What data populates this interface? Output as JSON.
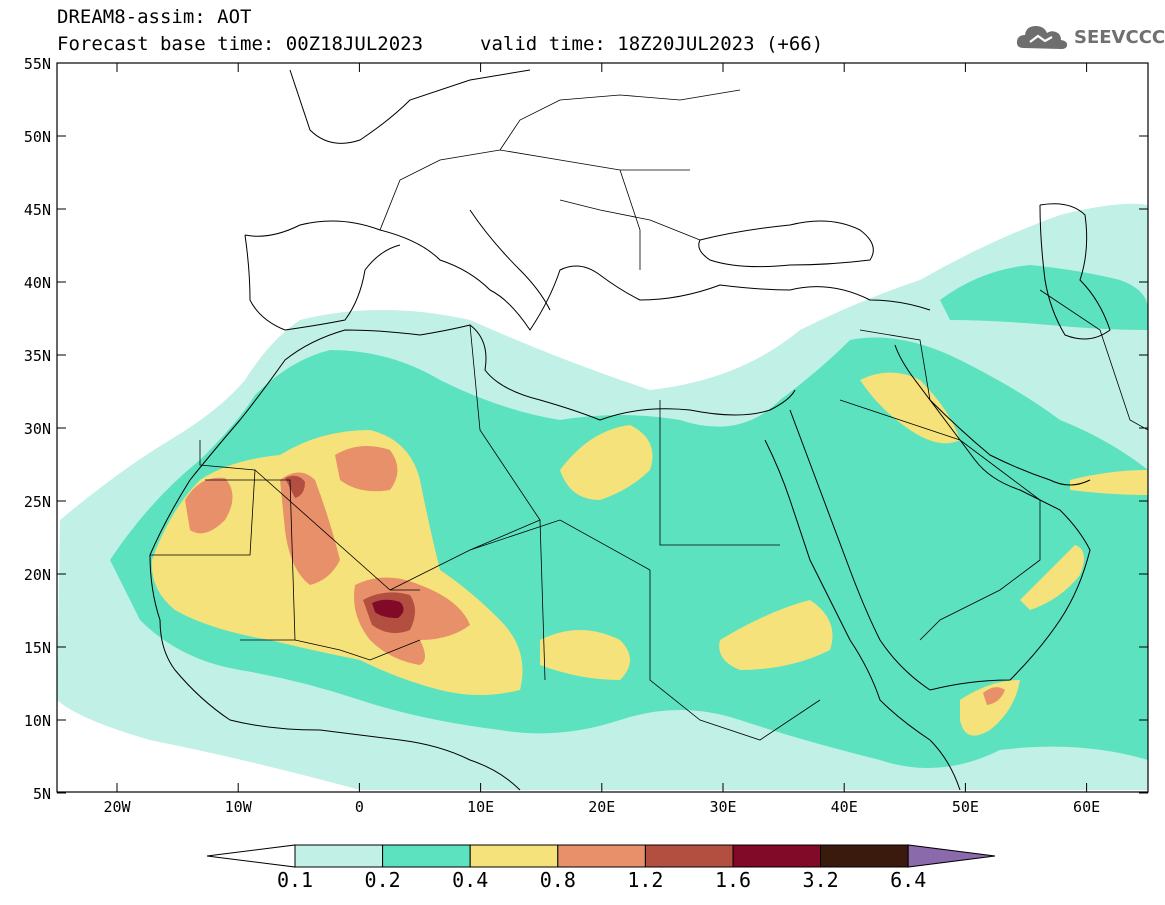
{
  "header": {
    "title": "DREAM8-assim: AOT",
    "forecast_base": "Forecast base time: 00Z18JUL2023",
    "valid_time": "valid time: 18Z20JUL2023 (+66)",
    "logo_text": "SEEVCCC",
    "logo_icon": "cloud-logo-icon"
  },
  "axes": {
    "lat_labels": [
      "55N",
      "50N",
      "45N",
      "40N",
      "35N",
      "30N",
      "25N",
      "20N",
      "15N",
      "10N",
      "5N"
    ],
    "lon_labels": [
      "20W",
      "10W",
      "0",
      "10E",
      "20E",
      "30E",
      "40E",
      "50E",
      "60E"
    ]
  },
  "colorbar": {
    "labels": [
      "0.1",
      "0.2",
      "0.4",
      "0.8",
      "1.2",
      "1.6",
      "3.2",
      "6.4"
    ],
    "colors": [
      "#ffffff",
      "#c0f0e6",
      "#5ce2bf",
      "#f5e27a",
      "#e8906a",
      "#b24f40",
      "#800a28",
      "#3b1a0e",
      "#8a6aaa"
    ]
  },
  "colors": {
    "aot_0_1": "#c0f0e6",
    "aot_0_2": "#5ce2bf",
    "aot_0_4": "#f5e27a",
    "aot_0_8": "#e8906a",
    "aot_1_2": "#b24f40",
    "aot_1_6": "#800a28"
  }
}
